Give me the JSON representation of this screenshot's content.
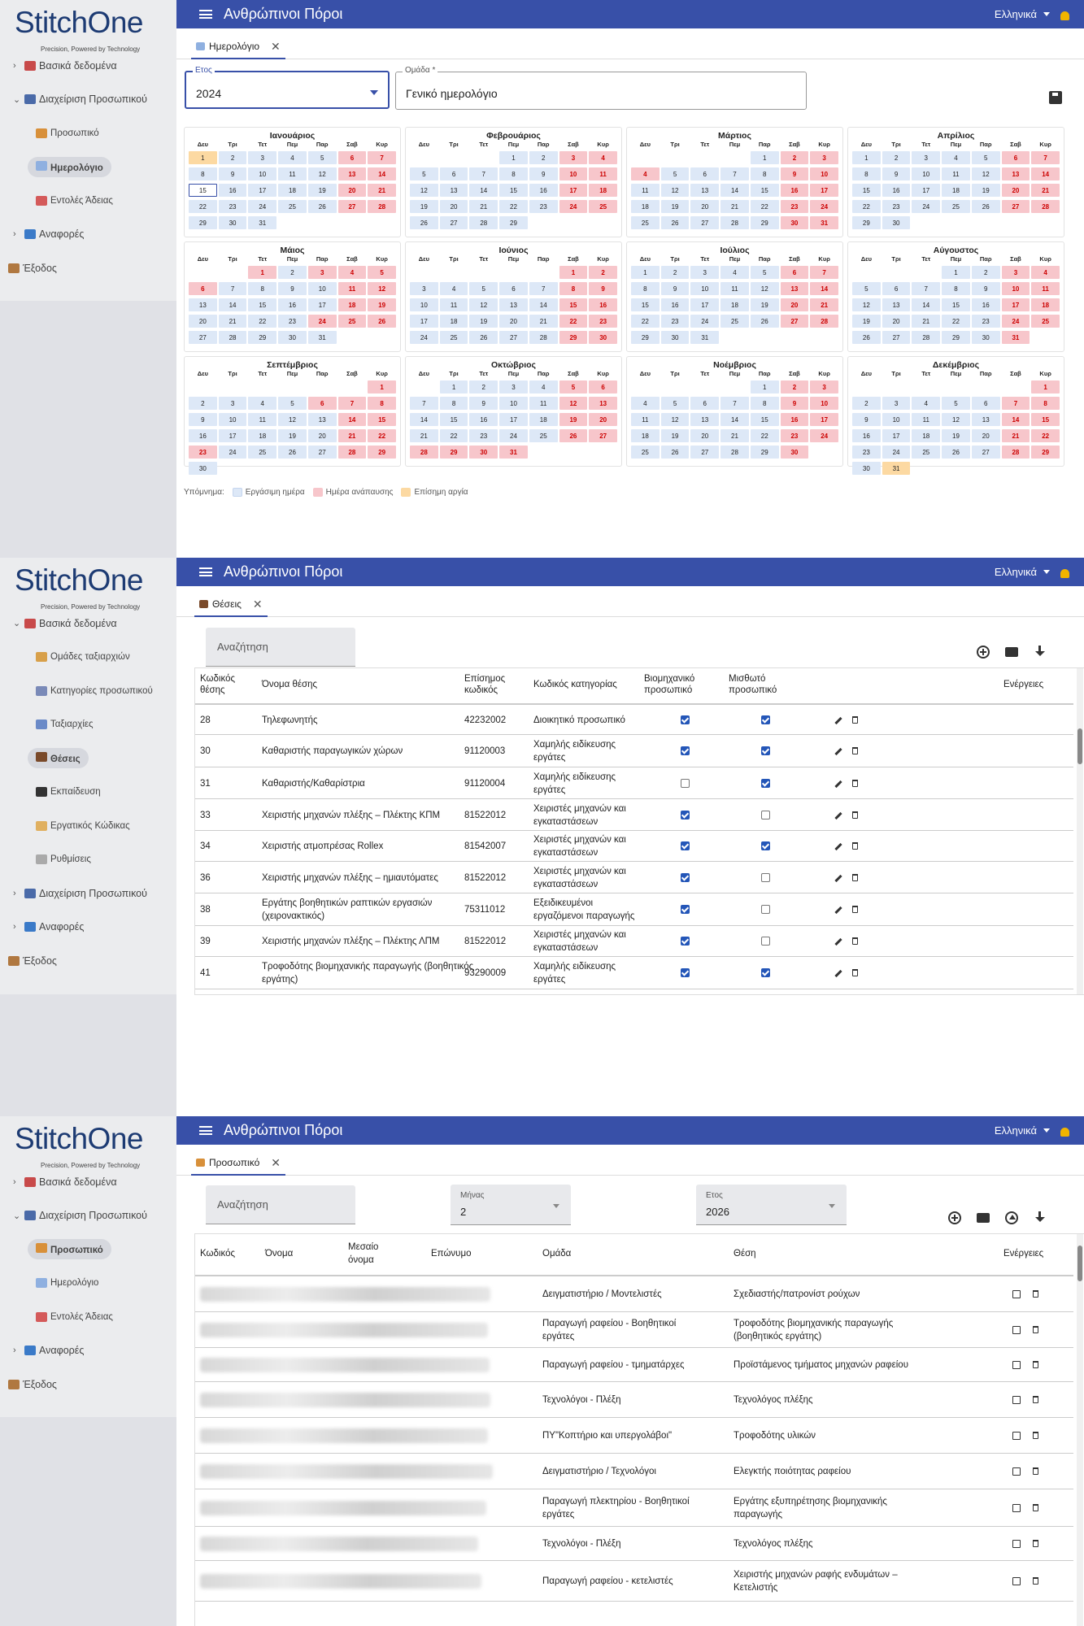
{
  "app": {
    "title": "Ανθρώπινοι Πόροι",
    "language": "Ελληνικά",
    "logo_text": "StitchOne",
    "logo_tagline": "Precision, Powered by Technology"
  },
  "screen1": {
    "sidebar": [
      {
        "label": "Βασικά δεδομένα",
        "level": 1,
        "chev": ">",
        "icon": "books-icon"
      },
      {
        "label": "Διαχείριση Προσωπικού",
        "level": 1,
        "chev": "v",
        "icon": "people-icon"
      },
      {
        "label": "Προσωπικό",
        "level": 2,
        "icon": "person-icon"
      },
      {
        "label": "Ημερολόγιο",
        "level": 2,
        "icon": "calendar-icon",
        "active": true
      },
      {
        "label": "Εντολές Άδειας",
        "level": 2,
        "icon": "leave-icon"
      },
      {
        "label": "Αναφορές",
        "level": 1,
        "chev": ">",
        "icon": "chart-icon"
      },
      {
        "label": "Έξοδος",
        "level": 0,
        "icon": "exit-icon"
      }
    ],
    "tab": "Ημερολόγιο",
    "year_label": "Ετος",
    "year_value": "2024",
    "group_label": "Ομάδα *",
    "group_value": "Γενικό ημερολόγιο",
    "weekdays": [
      "Δευ",
      "Τρι",
      "Τετ",
      "Πεμ",
      "Παρ",
      "Σαβ",
      "Κυρ"
    ],
    "months": [
      {
        "name": "Ιανουάριος",
        "offset": 0,
        "days": 31,
        "red": [
          6,
          7,
          13,
          14,
          20,
          21,
          27,
          28
        ],
        "holiday": [
          1
        ],
        "today": 15
      },
      {
        "name": "Φεβρουάριος",
        "offset": 3,
        "days": 29,
        "red": [
          3,
          4,
          10,
          11,
          17,
          18,
          24,
          25
        ],
        "holiday": []
      },
      {
        "name": "Μάρτιος",
        "offset": 4,
        "days": 31,
        "red": [
          2,
          3,
          4,
          9,
          10,
          16,
          17,
          23,
          24,
          30,
          31
        ],
        "holiday": []
      },
      {
        "name": "Απρίλιος",
        "offset": 0,
        "days": 30,
        "red": [
          6,
          7,
          13,
          14,
          20,
          21,
          27,
          28
        ],
        "holiday": []
      },
      {
        "name": "Μάιος",
        "offset": 2,
        "days": 31,
        "red": [
          1,
          3,
          4,
          5,
          6,
          11,
          12,
          18,
          19,
          24,
          25,
          26
        ],
        "holiday": []
      },
      {
        "name": "Ιούνιος",
        "offset": 5,
        "days": 30,
        "red": [
          1,
          2,
          8,
          9,
          15,
          16,
          22,
          23,
          29,
          30
        ],
        "holiday": []
      },
      {
        "name": "Ιούλιος",
        "offset": 0,
        "days": 31,
        "red": [
          6,
          7,
          13,
          14,
          20,
          21,
          27,
          28
        ],
        "holiday": []
      },
      {
        "name": "Αύγουστος",
        "offset": 3,
        "days": 31,
        "red": [
          3,
          4,
          10,
          11,
          17,
          18,
          24,
          25,
          31
        ],
        "holiday": []
      },
      {
        "name": "Σεπτέμβριος",
        "offset": 6,
        "days": 30,
        "red": [
          1,
          6,
          7,
          8,
          14,
          15,
          21,
          22,
          23,
          28,
          29
        ],
        "holiday": []
      },
      {
        "name": "Οκτώβριος",
        "offset": 1,
        "days": 31,
        "red": [
          5,
          6,
          12,
          13,
          19,
          20,
          26,
          27,
          28,
          29,
          30,
          31
        ],
        "holiday": []
      },
      {
        "name": "Νοέμβριος",
        "offset": 4,
        "days": 30,
        "red": [
          2,
          3,
          9,
          10,
          16,
          17,
          23,
          24,
          30
        ],
        "holiday": []
      },
      {
        "name": "Δεκέμβριος",
        "offset": 6,
        "days": 31,
        "red": [
          1,
          7,
          8,
          14,
          15,
          21,
          22,
          28,
          29
        ],
        "holiday": [
          31
        ]
      }
    ],
    "legend": {
      "title": "Υπόμνημα:",
      "work": "Εργάσιμη ημέρα",
      "rest": "Ημέρα ανάπαυσης",
      "holiday": "Επίσημη αργία"
    }
  },
  "screen2": {
    "sidebar": [
      {
        "label": "Βασικά δεδομένα",
        "level": 1,
        "chev": "v",
        "icon": "books-icon"
      },
      {
        "label": "Ομάδες ταξιαρχιών",
        "level": 2,
        "icon": "groups-icon"
      },
      {
        "label": "Κατηγορίες προσωπικού",
        "level": 2,
        "icon": "categories-icon"
      },
      {
        "label": "Ταξιαρχίες",
        "level": 2,
        "icon": "brigade-icon"
      },
      {
        "label": "Θέσεις",
        "level": 2,
        "icon": "briefcase-icon",
        "active": true
      },
      {
        "label": "Εκπαίδευση",
        "level": 2,
        "icon": "education-icon"
      },
      {
        "label": "Εργατικός Κώδικας",
        "level": 2,
        "icon": "scroll-icon"
      },
      {
        "label": "Ρυθμίσεις",
        "level": 2,
        "icon": "settings-icon"
      },
      {
        "label": "Διαχείριση Προσωπικού",
        "level": 1,
        "chev": ">",
        "icon": "people-icon"
      },
      {
        "label": "Αναφορές",
        "level": 1,
        "chev": ">",
        "icon": "chart-icon"
      },
      {
        "label": "Έξοδος",
        "level": 0,
        "icon": "exit-icon"
      }
    ],
    "tab": "Θέσεις",
    "search_placeholder": "Αναζήτηση",
    "headers": {
      "code": [
        "Κωδικός",
        "θέσης"
      ],
      "name": "Όνομα θέσης",
      "official": [
        "Επίσημος",
        "κωδικός"
      ],
      "category": "Κωδικός κατηγορίας",
      "industrial": [
        "Βιομηχανικό",
        "προσωπικό"
      ],
      "salaried": [
        "Μισθωτό",
        "προσωπικό"
      ],
      "actions": "Ενέργειες"
    },
    "rows": [
      {
        "code": "28",
        "name": [
          "Τηλεφωνητής"
        ],
        "official": "42232002",
        "category": [
          "Διοικητικό προσωπικό"
        ],
        "industrial": true,
        "salaried": true
      },
      {
        "code": "30",
        "name": [
          "Καθαριστής παραγωγικών χώρων"
        ],
        "official": "91120003",
        "category": [
          "Χαμηλής ειδίκευσης",
          "εργάτες"
        ],
        "industrial": true,
        "salaried": true
      },
      {
        "code": "31",
        "name": [
          "Καθαριστής/Καθαρίστρια"
        ],
        "official": "91120004",
        "category": [
          "Χαμηλής ειδίκευσης",
          "εργάτες"
        ],
        "industrial": false,
        "salaried": true
      },
      {
        "code": "33",
        "name": [
          "Χειριστής μηχανών πλέξης – Πλέκτης ΚΠΜ"
        ],
        "official": "81522012",
        "category": [
          "Χειριστές μηχανών και",
          "εγκαταστάσεων"
        ],
        "industrial": true,
        "salaried": false
      },
      {
        "code": "34",
        "name": [
          "Χειριστής ατμοπρέσας Rollex"
        ],
        "official": "81542007",
        "category": [
          "Χειριστές μηχανών και",
          "εγκαταστάσεων"
        ],
        "industrial": true,
        "salaried": true
      },
      {
        "code": "36",
        "name": [
          "Χειριστής μηχανών πλέξης – ημιαυτόματες"
        ],
        "official": "81522012",
        "category": [
          "Χειριστές μηχανών και",
          "εγκαταστάσεων"
        ],
        "industrial": true,
        "salaried": false
      },
      {
        "code": "38",
        "name": [
          "Εργάτης βοηθητικών ραπτικών εργασιών",
          "(χειρονακτικός)"
        ],
        "official": "75311012",
        "category": [
          "Εξειδικευμένοι",
          "εργαζόμενοι παραγωγής"
        ],
        "industrial": true,
        "salaried": false
      },
      {
        "code": "39",
        "name": [
          "Χειριστής μηχανών πλέξης – Πλέκτης ΛΠΜ"
        ],
        "official": "81522012",
        "category": [
          "Χειριστές μηχανών και",
          "εγκαταστάσεων"
        ],
        "industrial": true,
        "salaried": false
      },
      {
        "code": "41",
        "name": [
          "Τροφοδότης βιομηχανικής παραγωγής (βοηθητικός",
          "εργάτης)"
        ],
        "official": "93290009",
        "category": [
          "Χαμηλής ειδίκευσης",
          "εργάτες"
        ],
        "industrial": true,
        "salaried": true
      }
    ]
  },
  "screen3": {
    "sidebar": [
      {
        "label": "Βασικά δεδομένα",
        "level": 1,
        "chev": ">",
        "icon": "books-icon"
      },
      {
        "label": "Διαχείριση Προσωπικού",
        "level": 1,
        "chev": "v",
        "icon": "people-icon"
      },
      {
        "label": "Προσωπικό",
        "level": 2,
        "icon": "person-icon",
        "active": true
      },
      {
        "label": "Ημερολόγιο",
        "level": 2,
        "icon": "calendar-icon"
      },
      {
        "label": "Εντολές Άδειας",
        "level": 2,
        "icon": "leave-icon"
      },
      {
        "label": "Αναφορές",
        "level": 1,
        "chev": ">",
        "icon": "chart-icon"
      },
      {
        "label": "Έξοδος",
        "level": 0,
        "icon": "exit-icon"
      }
    ],
    "tab": "Προσωπικό",
    "search_placeholder": "Αναζήτηση",
    "month_label": "Μήνας",
    "month_value": "2",
    "year_label": "Ετος",
    "year_value": "2026",
    "headers": {
      "code": "Κωδικός",
      "first": "Όνομα",
      "middle": [
        "Μεσαίο",
        "όνομα"
      ],
      "last": "Επώνυμο",
      "group": "Ομάδα",
      "position": "Θέση",
      "actions": "Ενέργειες"
    },
    "rows": [
      {
        "group": [
          "Δειγματιστήριο / Μοντελιστές"
        ],
        "position": [
          "Σχεδιαστής/πατρονίστ ρούχων"
        ]
      },
      {
        "group": [
          "Παραγωγή ραφείου - Βοηθητικοί",
          "εργάτες"
        ],
        "position": [
          "Τροφοδότης βιομηχανικής παραγωγής",
          "(βοηθητικός εργάτης)"
        ]
      },
      {
        "group": [
          "Παραγωγή ραφείου - τμηματάρχες"
        ],
        "position": [
          "Προϊστάμενος τμήματος μηχανών ραφείου"
        ]
      },
      {
        "group": [
          "Τεχνολόγοι - Πλέξη"
        ],
        "position": [
          "Τεχνολόγος πλέξης"
        ]
      },
      {
        "group": [
          "ΠΥ\"Κοπτήριο και υπεργολάβοι\""
        ],
        "position": [
          "Τροφοδότης υλικών"
        ]
      },
      {
        "group": [
          "Δειγματιστήριο / Τεχνολόγοι"
        ],
        "position": [
          "Ελεγκτής ποιότητας ραφείου"
        ]
      },
      {
        "group": [
          "Παραγωγή πλεκτηρίου - Βοηθητικοί",
          "εργάτες"
        ],
        "position": [
          "Εργάτης εξυπηρέτησης βιομηχανικής",
          "παραγωγής"
        ]
      },
      {
        "group": [
          "Τεχνολόγοι - Πλέξη"
        ],
        "position": [
          "Τεχνολόγος πλέξης"
        ]
      },
      {
        "group": [
          "Παραγωγή ραφείου - κετελιστές"
        ],
        "position": [
          "Χειριστής μηχανών ραφής ενδυμάτων –",
          "Κετελιστής"
        ]
      }
    ]
  },
  "colors": {
    "topbar": "#3850a8",
    "work_day": "#dde8f7",
    "rest_day": "#f7c6cb",
    "holiday": "#fcd9a2",
    "checkbox": "#2456b8"
  }
}
